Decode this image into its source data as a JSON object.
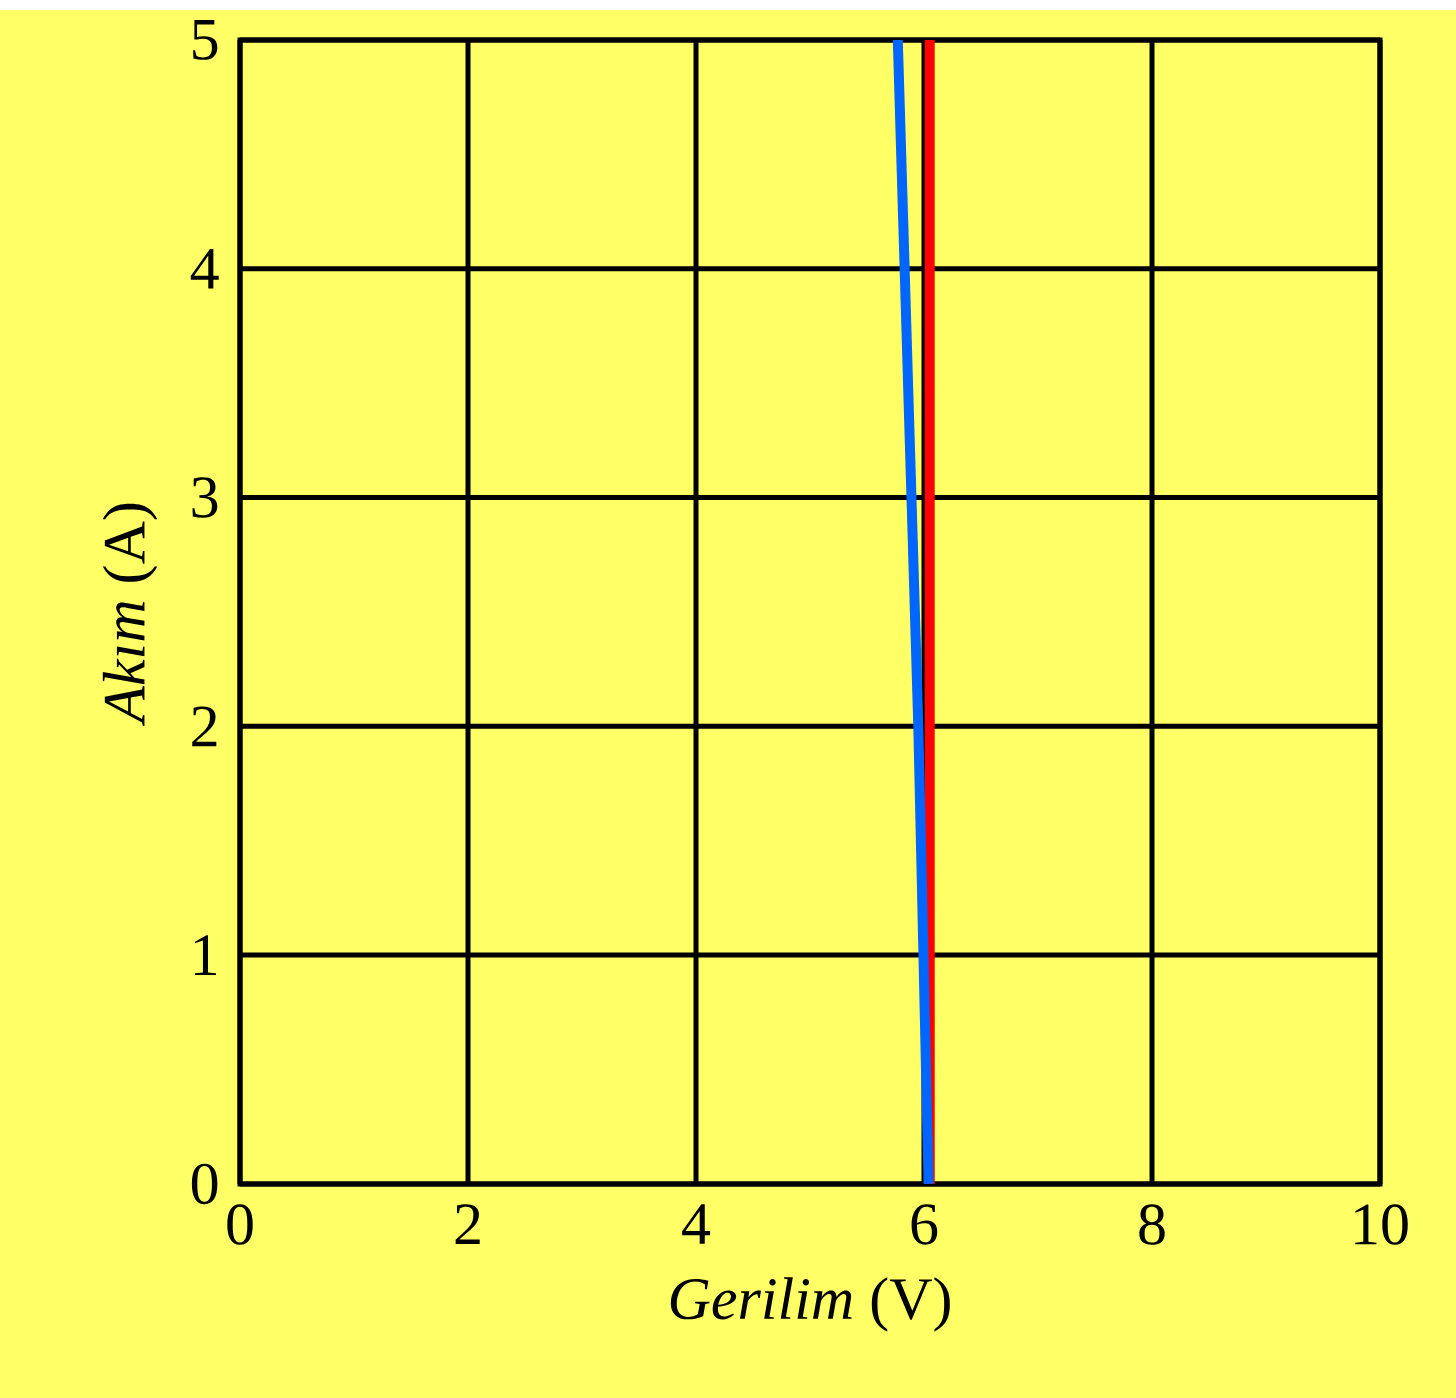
{
  "chart_data": {
    "type": "line",
    "xlabel": "*Gerilim* (V)",
    "ylabel": "*Akım* (A)",
    "xlim": [
      0,
      10
    ],
    "ylim": [
      0,
      5
    ],
    "xticks": [
      0,
      2,
      4,
      6,
      8,
      10
    ],
    "yticks": [
      0,
      1,
      2,
      3,
      4,
      5
    ],
    "grid": true,
    "marker": "none",
    "line_style": "solid",
    "series": [
      {
        "color": "#ff0000",
        "x": [
          6.05,
          6.05
        ],
        "values": [
          0,
          5
        ]
      },
      {
        "color": "#0066ff",
        "x": [
          6.04,
          5.95,
          5.77
        ],
        "values": [
          0,
          2,
          5
        ]
      }
    ]
  }
}
